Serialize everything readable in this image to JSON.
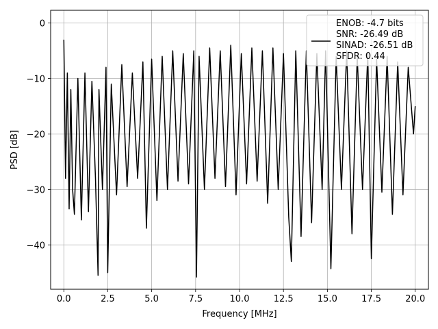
{
  "chart_data": {
    "type": "line",
    "xlabel": "Frequency [MHz]",
    "ylabel": "PSD [dB]",
    "xlim": [
      -0.75,
      20.75
    ],
    "ylim": [
      -48.0,
      2.3
    ],
    "xticks": [
      0.0,
      2.5,
      5.0,
      7.5,
      10.0,
      12.5,
      15.0,
      17.5,
      20.0
    ],
    "xtick_labels": [
      "0.0",
      "2.5",
      "5.0",
      "7.5",
      "10.0",
      "12.5",
      "15.0",
      "17.5",
      "20.0"
    ],
    "yticks": [
      0,
      -10,
      -20,
      -30,
      -40
    ],
    "ytick_labels": [
      "0",
      "−10",
      "−20",
      "−30",
      "−40"
    ],
    "grid": true,
    "legend_position": "top-right",
    "series": [
      {
        "name": "ENOB: -4.7 bits\nSNR: -26.49 dB\nSINAD: -26.51 dB\nSFDR: 0.44",
        "color": "#000000",
        "x": [
          0.0,
          0.1,
          0.2,
          0.3,
          0.4,
          0.5,
          0.6,
          0.8,
          1.0,
          1.2,
          1.4,
          1.6,
          1.8,
          1.95,
          2.0,
          2.2,
          2.4,
          2.5,
          2.7,
          3.0,
          3.3,
          3.6,
          3.9,
          4.2,
          4.5,
          4.7,
          5.0,
          5.3,
          5.6,
          5.9,
          6.2,
          6.5,
          6.8,
          7.1,
          7.4,
          7.55,
          7.7,
          8.0,
          8.3,
          8.6,
          8.9,
          9.2,
          9.5,
          9.8,
          10.1,
          10.4,
          10.7,
          11.0,
          11.3,
          11.6,
          11.9,
          12.2,
          12.5,
          12.8,
          12.95,
          13.2,
          13.5,
          13.8,
          14.1,
          14.4,
          14.7,
          14.9,
          15.2,
          15.5,
          15.8,
          16.1,
          16.4,
          16.7,
          17.0,
          17.3,
          17.5,
          17.8,
          18.1,
          18.4,
          18.7,
          19.0,
          19.3,
          19.6,
          19.9,
          20.0
        ],
        "y": [
          -3.0,
          -28.0,
          -9.0,
          -33.5,
          -12.0,
          -30.0,
          -34.5,
          -10.0,
          -35.5,
          -9.0,
          -34.0,
          -10.5,
          -28.0,
          -45.5,
          -12.0,
          -30.0,
          -8.0,
          -45.0,
          -11.0,
          -31.0,
          -7.5,
          -29.5,
          -9.0,
          -28.0,
          -7.0,
          -37.0,
          -6.5,
          -32.0,
          -6.0,
          -30.0,
          -5.0,
          -28.5,
          -5.5,
          -29.0,
          -5.0,
          -45.8,
          -6.0,
          -30.0,
          -4.5,
          -28.0,
          -5.0,
          -29.5,
          -4.0,
          -31.0,
          -5.5,
          -29.0,
          -4.5,
          -28.5,
          -5.0,
          -32.5,
          -4.5,
          -30.0,
          -5.5,
          -35.0,
          -43.0,
          -5.0,
          -38.5,
          -5.0,
          -36.0,
          -5.5,
          -30.0,
          -5.0,
          -44.3,
          -6.0,
          -30.0,
          -5.0,
          -38.0,
          -6.0,
          -30.0,
          -5.5,
          -42.5,
          -6.5,
          -30.5,
          -6.0,
          -34.5,
          -7.0,
          -31.0,
          -8.0,
          -20.0,
          -15.0
        ]
      }
    ]
  }
}
